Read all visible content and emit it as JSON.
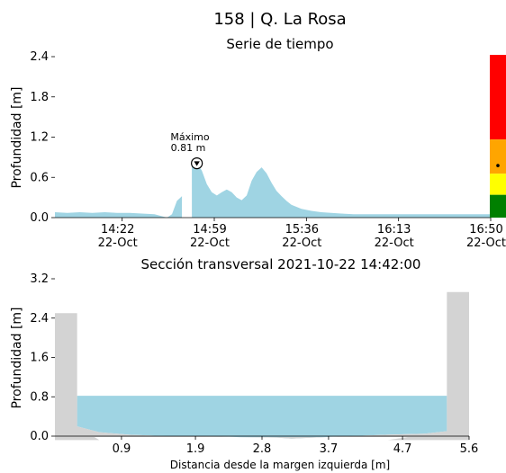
{
  "page": {
    "title": "158 | Q. La Rosa",
    "subtitle": "Serie de tiempo"
  },
  "colors": {
    "water": "#9fd4e3",
    "bank": "#d3d3d3",
    "level_red": "#ff0000",
    "level_orange": "#ffa500",
    "level_yellow": "#ffff00",
    "level_green": "#008000"
  },
  "chart_data": [
    {
      "type": "area",
      "title": "",
      "ylabel": "Profundidad [m]",
      "xlabel": "",
      "ylim": [
        0,
        2.4
      ],
      "xlim": [
        "13:55",
        "16:50"
      ],
      "x_ticks": [
        {
          "time": "14:22",
          "date": "22-Oct"
        },
        {
          "time": "14:59",
          "date": "22-Oct"
        },
        {
          "time": "15:36",
          "date": "22-Oct"
        },
        {
          "time": "16:13",
          "date": "22-Oct"
        },
        {
          "time": "16:50",
          "date": "22-Oct"
        }
      ],
      "y_ticks": [
        "0.0",
        "0.6",
        "1.2",
        "1.8",
        "2.4"
      ],
      "series": [
        {
          "x": [
            "13:55",
            "14:00",
            "14:05",
            "14:10",
            "14:15",
            "14:20",
            "14:25",
            "14:30",
            "14:35",
            "14:40",
            "14:42",
            "14:44",
            "14:46",
            "14:47",
            "14:48",
            "14:50",
            "14:52",
            "14:54",
            "14:56",
            "14:58",
            "15:00",
            "15:02",
            "15:04",
            "15:06",
            "15:08",
            "15:10",
            "15:12",
            "15:14",
            "15:16",
            "15:18",
            "15:20",
            "15:22",
            "15:24",
            "15:26",
            "15:28",
            "15:30",
            "15:34",
            "15:38",
            "15:42",
            "15:46",
            "15:50",
            "15:55",
            "16:00",
            "16:10",
            "16:20",
            "16:30",
            "16:40",
            "16:50"
          ],
          "y": [
            0.08,
            0.07,
            0.08,
            0.07,
            0.08,
            0.07,
            0.07,
            0.06,
            0.05,
            0.0,
            0.05,
            0.25,
            0.32,
            null,
            null,
            0.78,
            0.81,
            0.7,
            0.5,
            0.38,
            0.33,
            0.38,
            0.42,
            0.38,
            0.3,
            0.26,
            0.33,
            0.55,
            0.68,
            0.75,
            0.66,
            0.52,
            0.4,
            0.32,
            0.25,
            0.19,
            0.13,
            0.1,
            0.08,
            0.07,
            0.06,
            0.05,
            0.05,
            0.05,
            0.05,
            0.05,
            0.05,
            0.05
          ]
        }
      ],
      "annotation": {
        "label": "Máximo",
        "value_text": "0.81 m",
        "x": "14:52",
        "y": 0.81
      },
      "alert_levels": [
        {
          "level": "red",
          "from": 0.0,
          "to": 0.52
        },
        {
          "level": "orange",
          "from": 0.52,
          "to": 0.73
        },
        {
          "level": "yellow",
          "from": 0.73,
          "to": 0.86
        },
        {
          "level": "green",
          "from": 0.86,
          "to": 1.0
        }
      ],
      "current_level_marker": 0.68
    },
    {
      "type": "area",
      "title": "Sección transversal 2021-10-22 14:42:00",
      "xlabel": "Distancia desde la margen izquierda [m]",
      "ylabel": "Profundidad [m]",
      "xlim": [
        0,
        5.6
      ],
      "ylim": [
        0,
        3.2
      ],
      "x_ticks": [
        "0.9",
        "1.9",
        "2.8",
        "3.7",
        "4.7",
        "5.6"
      ],
      "y_ticks": [
        "0.0",
        "0.8",
        "1.6",
        "2.4",
        "3.2"
      ],
      "water_level": 0.82,
      "bed": {
        "x": [
          0.3,
          0.6,
          1.0,
          1.5,
          2.0,
          2.5,
          3.0,
          3.2,
          3.5,
          4.0,
          4.5,
          5.0,
          5.3
        ],
        "y": [
          0.2,
          0.08,
          0.03,
          0.0,
          0.0,
          -0.02,
          -0.03,
          -0.05,
          -0.03,
          0.0,
          0.03,
          0.05,
          0.1
        ]
      },
      "left_bank": {
        "x_from": 0.0,
        "x_to": 0.3,
        "top": 2.5
      },
      "right_bank": {
        "x_from": 5.3,
        "x_to": 5.6,
        "top": 2.93
      }
    }
  ]
}
